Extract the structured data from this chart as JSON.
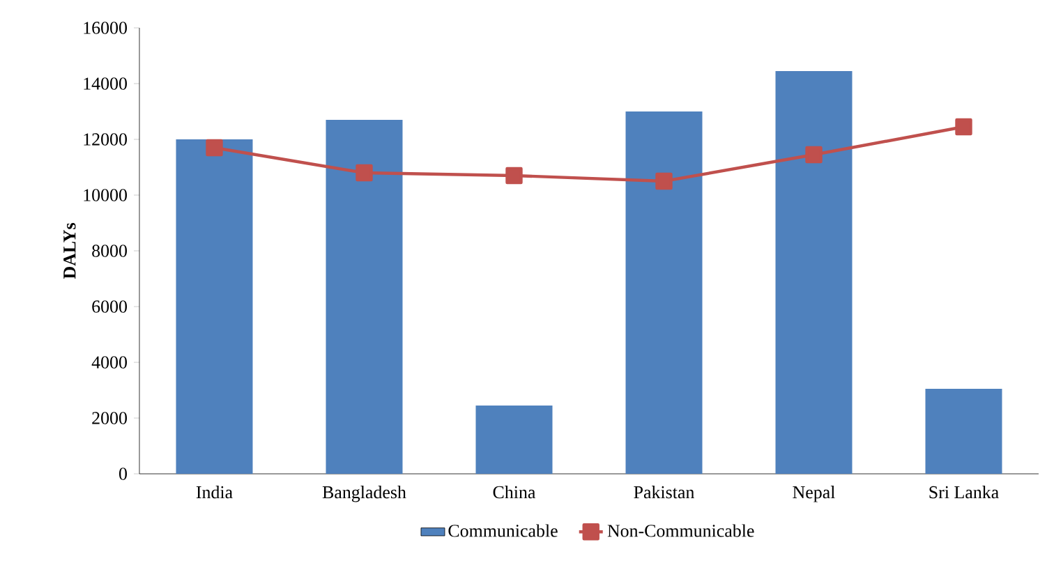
{
  "chart_data": {
    "type": "bar",
    "ylabel": "DALYs",
    "categories": [
      "India",
      "Bangladesh",
      "China",
      "Pakistan",
      "Nepal",
      "Sri Lanka"
    ],
    "series": [
      {
        "name": "Communicable",
        "color": "#4f81bd",
        "values": [
          12000,
          12700,
          2450,
          13000,
          14450,
          3050
        ]
      },
      {
        "name": "Non-Communicable",
        "type": "line",
        "color": "#c0504d",
        "marker": "square",
        "values": [
          11700,
          10800,
          10700,
          10500,
          11450,
          12450
        ]
      }
    ],
    "ylim": [
      0,
      16000
    ],
    "yticks": [
      0,
      2000,
      4000,
      6000,
      8000,
      10000,
      12000,
      14000,
      16000
    ],
    "grid": false,
    "legend": "bottom"
  }
}
